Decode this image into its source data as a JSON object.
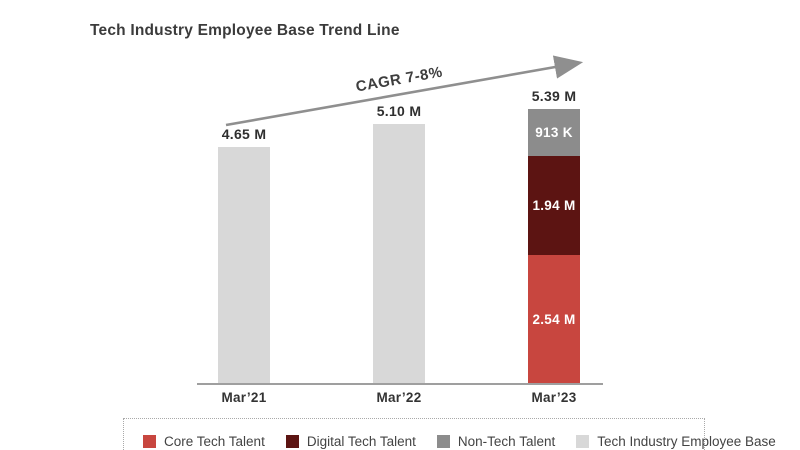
{
  "header": {
    "title": "Tech Industry Employee Base Trend Line"
  },
  "trend": {
    "label": "CAGR 7-8%"
  },
  "colors": {
    "core_tech": "#c8463f",
    "digital_tech": "#5c1412",
    "non_tech": "#8c8c8c",
    "employee_base": "#d8d8d8",
    "arrow": "#8f8f8f",
    "axis": "#9f9f9f",
    "text_dark": "#3b3b3b"
  },
  "legend": {
    "items": [
      {
        "label": "Core Tech Talent",
        "color": "#c8463f"
      },
      {
        "label": "Digital Tech Talent",
        "color": "#5c1412"
      },
      {
        "label": "Non-Tech Talent",
        "color": "#8c8c8c"
      },
      {
        "label": "Tech Industry Employee Base",
        "color": "#d8d8d8"
      }
    ]
  },
  "chart_data": {
    "type": "bar",
    "stacked": true,
    "title": "Tech Industry Employee Base Trend Line",
    "categories": [
      "Mar’21",
      "Mar’22",
      "Mar’23"
    ],
    "unit": "millions of employees",
    "annotation": "CAGR 7-8%",
    "ylim": [
      0,
      5.39
    ],
    "legend_position": "bottom",
    "grid": false,
    "bars": [
      {
        "category": "Mar’21",
        "total": 4.65,
        "total_label": "4.65 M",
        "segments": [
          {
            "name": "Tech Industry Employee Base",
            "value": 4.65,
            "label": "",
            "color": "#d8d8d8"
          }
        ]
      },
      {
        "category": "Mar’22",
        "total": 5.1,
        "total_label": "5.10 M",
        "segments": [
          {
            "name": "Tech Industry Employee Base",
            "value": 5.1,
            "label": "",
            "color": "#d8d8d8"
          }
        ]
      },
      {
        "category": "Mar’23",
        "total": 5.39,
        "total_label": "5.39 M",
        "segments": [
          {
            "name": "Core Tech Talent",
            "value": 2.54,
            "label": "2.54 M",
            "color": "#c8463f"
          },
          {
            "name": "Digital Tech Talent",
            "value": 1.94,
            "label": "1.94 M",
            "color": "#5c1412"
          },
          {
            "name": "Non-Tech Talent",
            "value": 0.913,
            "label": "913 K",
            "color": "#8c8c8c"
          }
        ]
      }
    ],
    "series": [
      {
        "name": "Core Tech Talent",
        "values": [
          null,
          null,
          2.54
        ]
      },
      {
        "name": "Digital Tech Talent",
        "values": [
          null,
          null,
          1.94
        ]
      },
      {
        "name": "Non-Tech Talent",
        "values": [
          null,
          null,
          0.913
        ]
      },
      {
        "name": "Tech Industry Employee Base (total)",
        "values": [
          4.65,
          5.1,
          5.39
        ]
      }
    ]
  }
}
